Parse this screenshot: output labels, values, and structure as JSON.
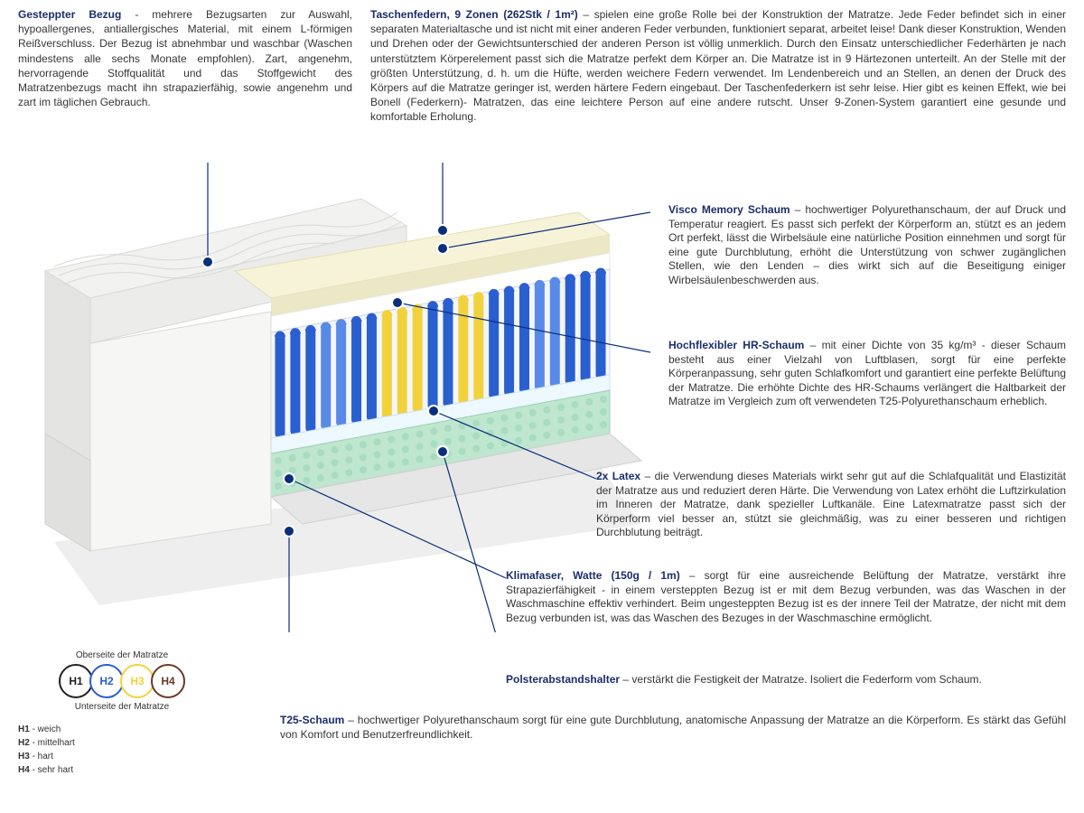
{
  "colors": {
    "title": "#1a2e6b",
    "body": "#353535",
    "leader": "#0a2f7a",
    "marker_fill": "#0a2f7a",
    "marker_stroke": "#ffffff",
    "cover": "#f2f2f0",
    "cover_shadow": "#d8d8d6",
    "foam_cream": "#f7f3d8",
    "foam_white": "#ffffff",
    "spring_blue": "#2a5fd0",
    "spring_blue_light": "#5a8ae8",
    "spring_yellow": "#f2d23c",
    "egg_foam": "#bfe6cf",
    "base_grey": "#e6e6e6"
  },
  "top_left": {
    "title": "Gesteppter Bezug",
    "body": " - mehrere Bezugsarten zur Auswahl, hypoallergenes, antiallergisches Material, mit einem L-förmigen Reißverschluss. Der Bezug ist abnehmbar und waschbar (Waschen mindestens alle sechs Monate empfohlen). Zart, angenehm, hervorragende Stoffqualität und das Stoffgewicht des Matratzenbezugs macht ihn strapazierfähig, sowie angenehm und zart im täglichen Gebrauch."
  },
  "top_right": {
    "title": "Taschenfedern, 9 Zonen (262Stk / 1m²)",
    "body": " – spielen eine große Rolle bei der Konstruktion der Matratze. Jede Feder befindet sich in einer separaten Materialtasche und ist nicht mit einer anderen Feder verbunden, funktioniert separat, arbeitet leise! Dank dieser Konstruktion, Wenden und Drehen oder der Gewichtsunterschied der anderen Person ist völlig unmerklich. Durch den Einsatz unterschiedlicher Federhärten je nach unterstütztem Körperelement passt sich die Matratze perfekt dem Körper an. Die Matratze ist in 9 Härtezonen unterteilt. An der Stelle mit der größten Unterstützung, d. h. um die Hüfte, werden weichere Federn verwendet. Im Lendenbereich und an Stellen, an denen der Druck des Körpers auf die Matratze geringer ist, werden härtere Federn eingebaut. Der Taschenfederkern ist sehr leise. Hier gibt es keinen Effekt, wie bei Bonell (Federkern)- Matratzen, das eine leichtere Person auf eine andere rutscht. Unser 9-Zonen-System garantiert eine gesunde und komfortable Erholung."
  },
  "callouts": {
    "visco": {
      "title": "Visco Memory Schaum",
      "body": " – hochwertiger Polyurethanschaum, der auf Druck und Temperatur reagiert. Es passt sich perfekt der Körperform an, stützt es an jedem Ort perfekt, lässt die Wirbelsäule eine natürliche Position einnehmen und sorgt für eine gute Durchblutung, erhöht die Unterstützung von schwer zugänglichen Stellen, wie den Lenden – dies wirkt sich auf die Beseitigung einiger Wirbelsäulenbeschwerden aus."
    },
    "hr": {
      "title": "Hochflexibler HR-Schaum",
      "body": " – mit einer Dichte von 35 kg/m³ - dieser Schaum besteht aus einer Vielzahl von Luftblasen, sorgt für eine perfekte Körperanpassung, sehr guten Schlafkomfort und garantiert eine perfekte Belüftung der Matratze. Die erhöhte Dichte des HR-Schaums verlängert die Haltbarkeit der Matratze im Vergleich zum oft verwendeten T25-Polyurethanschaum erheblich."
    },
    "latex": {
      "title": "2x Latex",
      "body": " – die Verwendung dieses Materials wirkt sehr gut auf die Schlafqualität und Elastizität der Matratze aus und reduziert deren Härte. Die Verwendung von Latex erhöht die Luftzirkulation im Inneren der Matratze, dank spezieller Luftkanäle. Eine Latexmatratze passt sich der Körperform viel besser an, stützt sie gleichmäßig, was zu einer besseren und richtigen Durchblutung beiträgt."
    },
    "klima": {
      "title": "Klimafaser, Watte (150g / 1m)",
      "body": " – sorgt für eine ausreichende Belüftung der Matratze, verstärkt ihre Strapazierfähigkeit - in einem versteppten Bezug ist er mit dem Bezug verbunden, was das Waschen in der Waschmaschine effektiv verhindert. Beim ungesteppten Bezug ist es der innere Teil der Matratze, der nicht mit dem Bezug verbunden ist, was das Waschen des Bezuges in der Waschmaschine ermöglicht."
    },
    "polster": {
      "title": "Polsterabstandshalter",
      "body": " – verstärkt die Festigkeit der Matratze. Isoliert die Federform vom Schaum."
    },
    "t25": {
      "title": "T25-Schaum",
      "body": " – hochwertiger Polyurethanschaum sorgt für eine gute Durchblutung, anatomische Anpassung der Matratze an die Körperform. Es stärkt das Gefühl von Komfort und Benutzerfreundlichkeit."
    }
  },
  "legend": {
    "top_label": "Oberseite der Matratze",
    "bottom_label": "Unterseite der Matratze",
    "entries": [
      {
        "code": "H1",
        "label": "weich",
        "color": "#222222"
      },
      {
        "code": "H2",
        "label": "mittelhart",
        "color": "#2a5fd0"
      },
      {
        "code": "H3",
        "label": "hart",
        "color": "#f2d23c"
      },
      {
        "code": "H4",
        "label": "sehr hart",
        "color": "#6b3a2a"
      }
    ]
  }
}
